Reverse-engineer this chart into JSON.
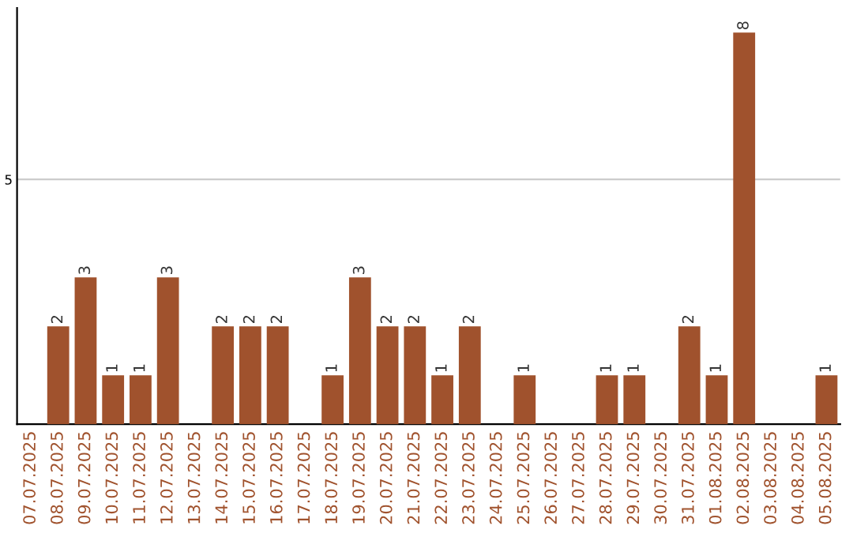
{
  "chart_data": {
    "type": "bar",
    "categories": [
      "07.07.2025",
      "08.07.2025",
      "09.07.2025",
      "10.07.2025",
      "11.07.2025",
      "12.07.2025",
      "13.07.2025",
      "14.07.2025",
      "15.07.2025",
      "16.07.2025",
      "17.07.2025",
      "18.07.2025",
      "19.07.2025",
      "20.07.2025",
      "21.07.2025",
      "22.07.2025",
      "23.07.2025",
      "24.07.2025",
      "25.07.2025",
      "26.07.2025",
      "27.07.2025",
      "28.07.2025",
      "29.07.2025",
      "30.07.2025",
      "31.07.2025",
      "01.08.2025",
      "02.08.2025",
      "03.08.2025",
      "04.08.2025",
      "05.08.2025"
    ],
    "values": [
      null,
      2,
      3,
      1,
      1,
      3,
      null,
      2,
      2,
      2,
      null,
      1,
      3,
      2,
      2,
      1,
      2,
      null,
      1,
      null,
      null,
      1,
      1,
      null,
      2,
      1,
      8,
      null,
      null,
      1
    ],
    "color": "#a0522d",
    "ylim": [
      0,
      8.5
    ],
    "yticks": [
      5
    ],
    "grid": "y",
    "data_labels": true
  }
}
